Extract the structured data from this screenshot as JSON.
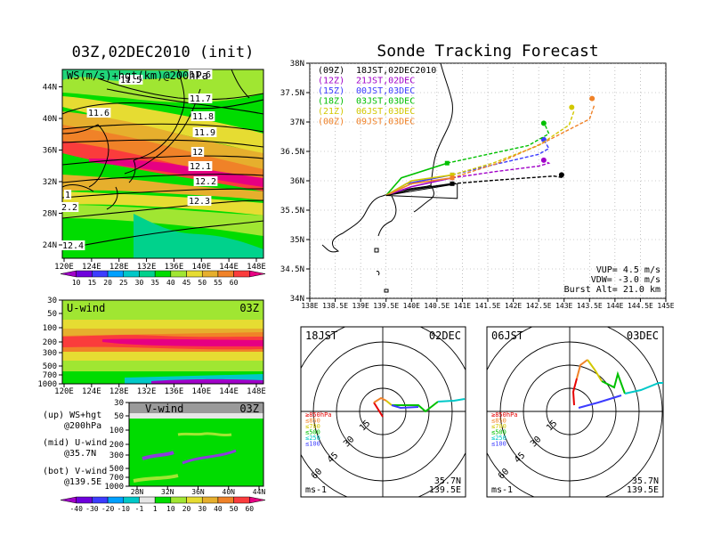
{
  "left_title": "03Z,02DEC2010 (init)",
  "right_title": "Sonde Tracking Forecast",
  "top_panel": {
    "label": "WS(m/s)+hgt(km)@200hPa",
    "contour_labels": [
      "11.5",
      "11.6",
      "11.6",
      "11.7",
      "11.8",
      "11.9",
      "12",
      "12.1",
      "12.2",
      "12.3",
      "1",
      "2.2",
      "12.4"
    ],
    "x_ticks": [
      "120E",
      "124E",
      "128E",
      "132E",
      "136E",
      "140E",
      "144E",
      "148E"
    ],
    "y_ticks": [
      "24N",
      "28N",
      "32N",
      "36N",
      "40N",
      "44N"
    ]
  },
  "ws_colorbar": {
    "labels": [
      "10",
      "15",
      "20",
      "25",
      "30",
      "35",
      "40",
      "45",
      "50",
      "55",
      "60"
    ],
    "colors": [
      "#a000c8",
      "#6e00dc",
      "#3c3cff",
      "#00a0ff",
      "#00c8c8",
      "#00d28c",
      "#00dc00",
      "#a0e632",
      "#e6dc32",
      "#e6af2d",
      "#f08228",
      "#fa3c3c",
      "#e60082"
    ]
  },
  "mid_panel": {
    "label": "U-wind",
    "time": "03Z",
    "y_ticks": [
      "30",
      "50",
      "100",
      "200",
      "300",
      "500",
      "700",
      "1000"
    ],
    "x_ticks": [
      "120E",
      "124E",
      "128E",
      "132E",
      "136E",
      "140E",
      "144E",
      "148E"
    ]
  },
  "bot_panel": {
    "label": "V-wind",
    "time": "03Z",
    "y_ticks": [
      "30",
      "50",
      "100",
      "200",
      "300",
      "500",
      "700",
      "1000"
    ],
    "x_ticks": [
      "28N",
      "32N",
      "36N",
      "40N",
      "44N"
    ]
  },
  "wind_colorbar": {
    "labels": [
      "-40",
      "-30",
      "-20",
      "-10",
      "-1",
      "1",
      "10",
      "20",
      "30",
      "40",
      "50",
      "60"
    ],
    "colors": [
      "#a000c8",
      "#6e00dc",
      "#3c3cff",
      "#00a0ff",
      "#00c8c8",
      "#e6e6e6",
      "#00dc00",
      "#a0e632",
      "#e6dc32",
      "#e6af2d",
      "#f08228",
      "#fa3c3c",
      "#e60082"
    ]
  },
  "notes": [
    {
      "a": "(up) WS+hgt",
      "b": "@200hPa"
    },
    {
      "a": "(mid) U-wind",
      "b": "@35.7N"
    },
    {
      "a": "(bot) V-wind",
      "b": "@139.5E"
    }
  ],
  "track_map": {
    "y_ticks": [
      "34N",
      "34.5N",
      "35N",
      "35.5N",
      "36N",
      "36.5N",
      "37N",
      "37.5N",
      "38N"
    ],
    "x_ticks": [
      "138E",
      "138.5E",
      "139E",
      "139.5E",
      "140E",
      "140.5E",
      "141E",
      "141.5E",
      "142E",
      "142.5E",
      "143E",
      "143.5E",
      "144E",
      "144.5E",
      "145E"
    ],
    "legend": [
      {
        "utc": "(09Z)",
        "text": "18JST,02DEC2010",
        "color": "#000000"
      },
      {
        "utc": "(12Z)",
        "text": "21JST,02DEC",
        "color": "#a000c8"
      },
      {
        "utc": "(15Z)",
        "text": "00JST,03DEC",
        "color": "#3c3cff"
      },
      {
        "utc": "(18Z)",
        "text": "03JST,03DEC",
        "color": "#00c000"
      },
      {
        "utc": "(21Z)",
        "text": "06JST,03DEC",
        "color": "#d2c800"
      },
      {
        "utc": "(00Z)",
        "text": "09JST,03DEC",
        "color": "#f08228"
      }
    ],
    "info": [
      "VUP= 4.5 m/s",
      "VDW= -3.0 m/s",
      "Burst Alt= 21.0 km"
    ]
  },
  "chart_data": {
    "type": "line",
    "title": "Sonde Tracking Forecast",
    "xlabel": "",
    "ylabel": "",
    "xlim": [
      138,
      145
    ],
    "ylim": [
      34,
      38
    ],
    "launch": [
      139.5,
      35.75
    ],
    "series": [
      {
        "name": "(09Z) 18JST,02DEC2010",
        "color": "#000000",
        "up": [
          [
            139.5,
            35.75
          ],
          [
            140.0,
            35.85
          ],
          [
            140.8,
            35.95
          ]
        ],
        "down": [
          [
            140.8,
            35.95
          ],
          [
            141.5,
            36.0
          ],
          [
            142.3,
            36.05
          ],
          [
            142.8,
            36.08
          ],
          [
            143.0,
            36.05
          ]
        ],
        "end": [
          142.95,
          36.1
        ]
      },
      {
        "name": "(12Z) 21JST,02DEC",
        "color": "#a000c8",
        "up": [
          [
            139.5,
            35.75
          ],
          [
            140.0,
            35.9
          ],
          [
            140.8,
            36.05
          ]
        ],
        "down": [
          [
            140.8,
            36.05
          ],
          [
            141.6,
            36.15
          ],
          [
            142.5,
            36.25
          ],
          [
            142.7,
            36.3
          ],
          [
            142.6,
            36.35
          ]
        ],
        "end": [
          142.6,
          36.35
        ]
      },
      {
        "name": "(15Z) 00JST,03DEC",
        "color": "#3c3cff",
        "up": [
          [
            139.5,
            35.75
          ],
          [
            139.9,
            35.95
          ],
          [
            140.8,
            36.1
          ]
        ],
        "down": [
          [
            140.8,
            36.1
          ],
          [
            141.5,
            36.25
          ],
          [
            142.5,
            36.45
          ],
          [
            142.7,
            36.55
          ],
          [
            142.6,
            36.7
          ]
        ],
        "end": [
          142.6,
          36.7
        ]
      },
      {
        "name": "(18Z) 03JST,03DEC",
        "color": "#00c000",
        "up": [
          [
            139.5,
            35.75
          ],
          [
            139.8,
            36.05
          ],
          [
            140.7,
            36.3
          ]
        ],
        "down": [
          [
            140.7,
            36.3
          ],
          [
            141.5,
            36.45
          ],
          [
            142.3,
            36.6
          ],
          [
            142.7,
            36.8
          ],
          [
            142.6,
            37.0
          ]
        ],
        "end": [
          142.6,
          36.98
        ]
      },
      {
        "name": "(21Z) 06JST,03DEC",
        "color": "#d2c800",
        "up": [
          [
            139.5,
            35.75
          ],
          [
            140.0,
            36.0
          ],
          [
            140.8,
            36.1
          ]
        ],
        "down": [
          [
            140.8,
            36.1
          ],
          [
            141.6,
            36.3
          ],
          [
            142.5,
            36.6
          ],
          [
            143.1,
            36.95
          ],
          [
            143.2,
            37.2
          ]
        ],
        "end": [
          143.15,
          37.25
        ]
      },
      {
        "name": "(00Z) 09JST,03DEC",
        "color": "#f08228",
        "up": [
          [
            139.5,
            35.75
          ],
          [
            140.0,
            35.95
          ],
          [
            140.8,
            36.05
          ]
        ],
        "down": [
          [
            140.8,
            36.05
          ],
          [
            141.7,
            36.3
          ],
          [
            142.6,
            36.65
          ],
          [
            143.5,
            37.05
          ],
          [
            143.6,
            37.3
          ]
        ],
        "end": [
          143.55,
          37.4
        ]
      }
    ]
  },
  "hodo_left": {
    "title_left": "18JST",
    "title_right": "02DEC",
    "ring_labels": [
      "15",
      "30",
      "45",
      "60"
    ],
    "legend": [
      {
        "t": "≥850hPa",
        "c": "#e60000"
      },
      {
        "t": "≤850",
        "c": "#f08228"
      },
      {
        "t": "≤700",
        "c": "#d2c800"
      },
      {
        "t": "≤500",
        "c": "#00c000"
      },
      {
        "t": "≤250",
        "c": "#00c8c8"
      },
      {
        "t": "≤100",
        "c": "#3c3cff"
      }
    ],
    "unit": "ms-1",
    "lat": "35.7N",
    "lon": "139.5E"
  },
  "hodo_right": {
    "title_left": "06JST",
    "title_right": "03DEC",
    "ring_labels": [
      "15",
      "30",
      "45",
      "60"
    ],
    "unit": "ms-1",
    "lat": "35.7N",
    "lon": "139.5E"
  }
}
